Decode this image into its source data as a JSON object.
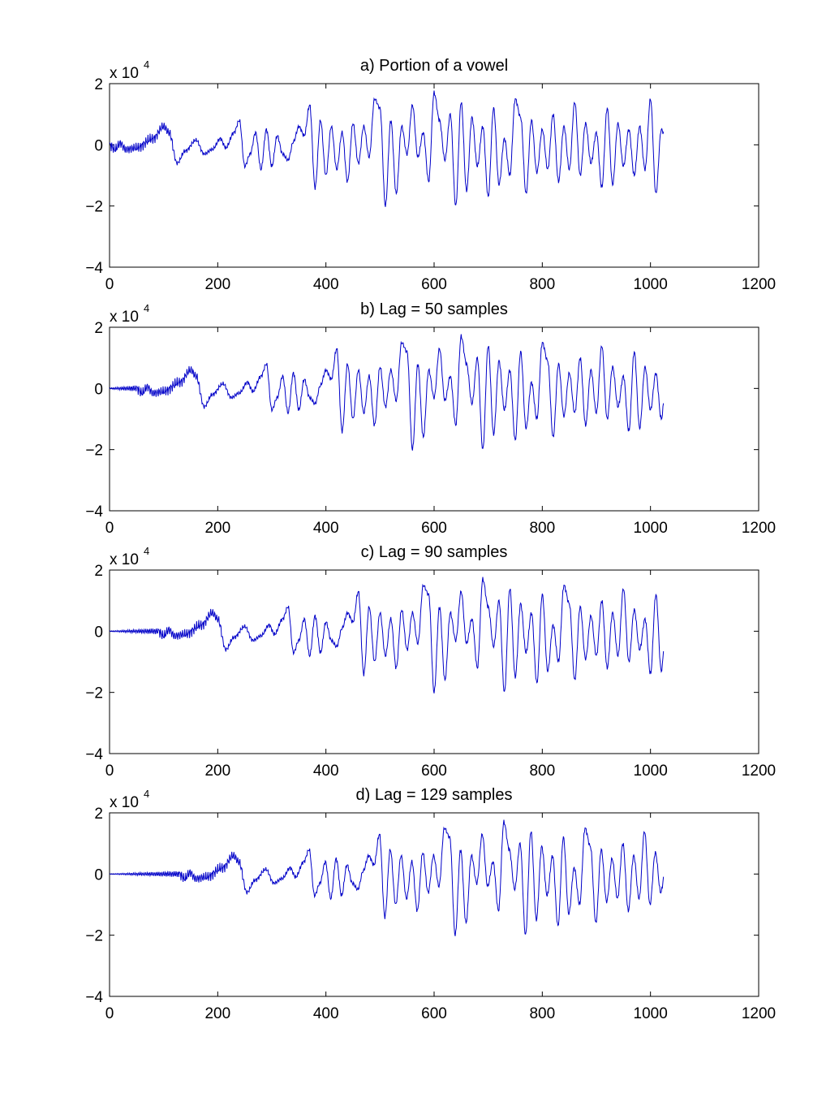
{
  "chart_data": [
    {
      "type": "line",
      "title": "a) Portion of a vowel",
      "xlim": [
        0,
        1200
      ],
      "ylim": [
        -40000,
        20000
      ],
      "x_ticks": [
        "0",
        "200",
        "400",
        "600",
        "800",
        "1000",
        "1200"
      ],
      "y_ticks": [
        "2",
        "0",
        "−2",
        "−4"
      ],
      "y_multiplier": {
        "base": "x 10",
        "exponent": "4"
      },
      "grid": false,
      "color": "#0000c8",
      "lag": 0,
      "x_end": 1024,
      "x_points": [
        0,
        10,
        20,
        30,
        50,
        80,
        100,
        110,
        125,
        140,
        160,
        175,
        190,
        205,
        215,
        230,
        240,
        250,
        260,
        270,
        280,
        290,
        300,
        310,
        320,
        330,
        340,
        350,
        360,
        370,
        380,
        390,
        400,
        410,
        420,
        430,
        440,
        450,
        460,
        470,
        480,
        490,
        500,
        510,
        520,
        530,
        540,
        550,
        560,
        570,
        580,
        590,
        600,
        610,
        620,
        630,
        640,
        650,
        660,
        670,
        680,
        690,
        700,
        710,
        720,
        730,
        740,
        750,
        760,
        770,
        780,
        790,
        800,
        810,
        820,
        830,
        840,
        850,
        860,
        870,
        880,
        890,
        900,
        910,
        920,
        930,
        940,
        950,
        960,
        970,
        980,
        990,
        1000,
        1010,
        1020,
        1024
      ],
      "y_points": [
        0,
        -1500,
        500,
        -1500,
        -1000,
        2000,
        6000,
        4000,
        -6000,
        -2000,
        1500,
        -3000,
        -1500,
        2000,
        -1000,
        4000,
        8000,
        -7000,
        -3000,
        4000,
        -8000,
        5000,
        -7000,
        3000,
        -3000,
        -5000,
        1000,
        6000,
        3000,
        13000,
        -14000,
        8000,
        -10000,
        6000,
        -8000,
        4000,
        -12000,
        7000,
        -6000,
        6000,
        -4000,
        15000,
        12000,
        -20000,
        8000,
        -16000,
        6000,
        -3000,
        13000,
        -4000,
        4000,
        -12000,
        17000,
        8000,
        -5000,
        10000,
        -20000,
        14000,
        -15000,
        9000,
        -7000,
        6000,
        -17000,
        12000,
        -13000,
        2000,
        -10000,
        15000,
        9000,
        -16000,
        8000,
        -9000,
        5000,
        -8000,
        10000,
        -12000,
        6000,
        -8000,
        14000,
        -10000,
        7000,
        -6000,
        4000,
        -14000,
        12000,
        -13000,
        7000,
        -7000,
        5000,
        -10000,
        6000,
        -8000,
        15000,
        -16000,
        5000,
        4000
      ]
    },
    {
      "type": "line",
      "title": "b) Lag = 50 samples",
      "xlim": [
        0,
        1200
      ],
      "ylim": [
        -40000,
        20000
      ],
      "x_ticks": [
        "0",
        "200",
        "400",
        "600",
        "800",
        "1000",
        "1200"
      ],
      "y_ticks": [
        "2",
        "0",
        "−2",
        "−4"
      ],
      "y_multiplier": {
        "base": "x 10",
        "exponent": "4"
      },
      "grid": false,
      "color": "#0000c8",
      "lag": 50,
      "x_end": 1024
    },
    {
      "type": "line",
      "title": "c) Lag = 90 samples",
      "xlim": [
        0,
        1200
      ],
      "ylim": [
        -40000,
        20000
      ],
      "x_ticks": [
        "0",
        "200",
        "400",
        "600",
        "800",
        "1000",
        "1200"
      ],
      "y_ticks": [
        "2",
        "0",
        "−2",
        "−4"
      ],
      "y_multiplier": {
        "base": "x 10",
        "exponent": "4"
      },
      "grid": false,
      "color": "#0000c8",
      "lag": 90,
      "x_end": 1024
    },
    {
      "type": "line",
      "title": "d) Lag = 129 samples",
      "xlim": [
        0,
        1200
      ],
      "ylim": [
        -40000,
        20000
      ],
      "x_ticks": [
        "0",
        "200",
        "400",
        "600",
        "800",
        "1000",
        "1200"
      ],
      "y_ticks": [
        "2",
        "0",
        "−2",
        "−4"
      ],
      "y_multiplier": {
        "base": "x 10",
        "exponent": "4"
      },
      "grid": false,
      "color": "#0000c8",
      "lag": 129,
      "x_end": 1024
    }
  ]
}
